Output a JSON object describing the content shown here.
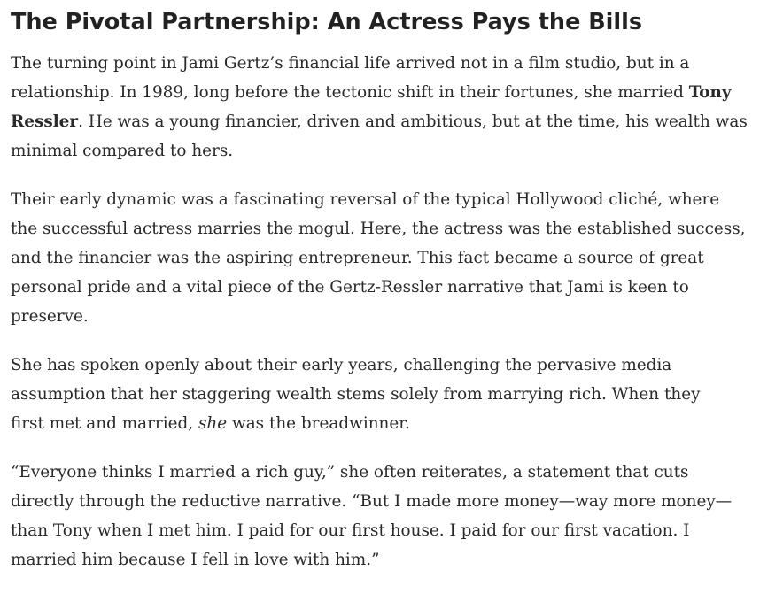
{
  "article": {
    "title": "The Pivotal Partnership: An Actress Pays the Bills",
    "paragraphs": [
      [
        [
          {
            "t": "The turning point in Jami Gertz’s financial life arrived not in a film studio, but in a"
          }
        ],
        [
          {
            "t": "relationship. In 1989, long before the tectonic shift in their fortunes, she married "
          },
          {
            "t": "Tony",
            "s": "b"
          }
        ],
        [
          {
            "t": "Ressler",
            "s": "b"
          },
          {
            "t": ". He was a young financier, driven and ambitious, but at the time, his wealth was"
          }
        ],
        [
          {
            "t": "minimal compared to hers."
          }
        ]
      ],
      [
        [
          {
            "t": "Their early dynamic was a fascinating reversal of the typical Hollywood cliché, where"
          }
        ],
        [
          {
            "t": "the successful actress marries the mogul. Here, the actress was the established success,"
          }
        ],
        [
          {
            "t": "and the financier was the aspiring entrepreneur. This fact became a source of great"
          }
        ],
        [
          {
            "t": "personal pride and a vital piece of the Gertz-Ressler narrative that Jami is keen to"
          }
        ],
        [
          {
            "t": "preserve."
          }
        ]
      ],
      [
        [
          {
            "t": "She has spoken openly about their early years, challenging the pervasive media"
          }
        ],
        [
          {
            "t": "assumption that her staggering wealth stems solely from marrying rich. When they"
          }
        ],
        [
          {
            "t": "first met and married, "
          },
          {
            "t": "she",
            "s": "i"
          },
          {
            "t": " was the breadwinner."
          }
        ]
      ],
      [
        [
          {
            "t": "“Everyone thinks I married a rich guy,” she often reiterates, a statement that cuts"
          }
        ],
        [
          {
            "t": "directly through the reductive narrative. “But I made more money—way more money—"
          }
        ],
        [
          {
            "t": "than Tony when I met him. I paid for our first house. I paid for our first vacation. I"
          }
        ],
        [
          {
            "t": "married him because I fell in love with him.”"
          }
        ]
      ]
    ]
  }
}
